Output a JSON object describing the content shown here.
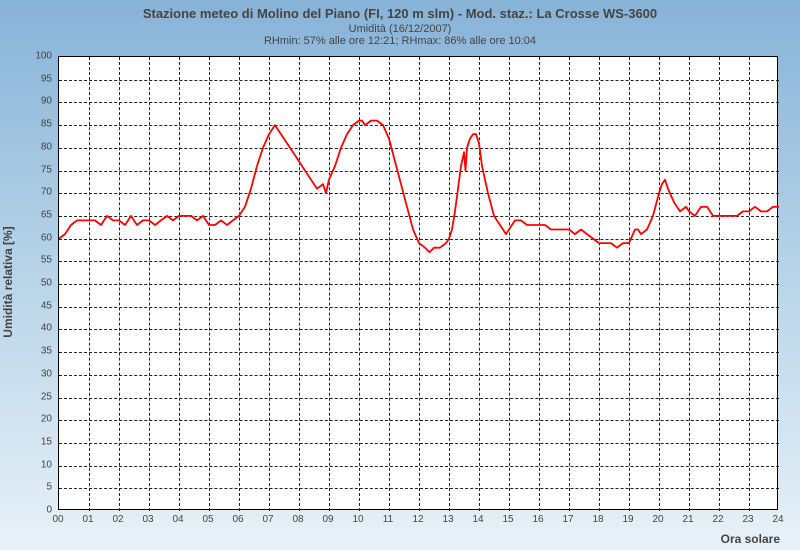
{
  "header": {
    "title": "Stazione meteo di Molino del Piano (FI, 120 m slm) - Mod. staz.: La Crosse WS-3600",
    "subtitle": "Umidità (16/12/2007)",
    "subtitle2": "RHmin: 57% alle ore 12:21; RHmax: 86% alle ore 10:04"
  },
  "axes": {
    "ylabel": "Umidità relativa [%]",
    "xlabel": "Ora solare",
    "ymin": 0,
    "ymax": 100,
    "ytick_step": 5,
    "xmin": 0,
    "xmax": 24,
    "xtick_step": 1,
    "xtick_labels": [
      "00",
      "01",
      "02",
      "03",
      "04",
      "05",
      "06",
      "07",
      "08",
      "09",
      "10",
      "11",
      "12",
      "13",
      "14",
      "15",
      "16",
      "17",
      "18",
      "19",
      "20",
      "21",
      "22",
      "23",
      "24"
    ]
  },
  "style": {
    "line_color": "#ff0000",
    "line_width": 1.8,
    "grid_color": "#222222",
    "plot_bg": "#ffffff",
    "page_bg_top": "#87b3d8",
    "page_bg_bottom": "#e8f1f8",
    "tick_font_size": 10,
    "label_font_size": 12,
    "title_font_size": 13
  },
  "series": {
    "name": "humidity",
    "points": [
      [
        0.0,
        60
      ],
      [
        0.2,
        61
      ],
      [
        0.4,
        63
      ],
      [
        0.6,
        64
      ],
      [
        0.8,
        64
      ],
      [
        1.0,
        64
      ],
      [
        1.2,
        64
      ],
      [
        1.4,
        63
      ],
      [
        1.6,
        65
      ],
      [
        1.8,
        64
      ],
      [
        2.0,
        64
      ],
      [
        2.2,
        63
      ],
      [
        2.4,
        65
      ],
      [
        2.6,
        63
      ],
      [
        2.8,
        64
      ],
      [
        3.0,
        64
      ],
      [
        3.2,
        63
      ],
      [
        3.4,
        64
      ],
      [
        3.6,
        65
      ],
      [
        3.8,
        64
      ],
      [
        4.0,
        65
      ],
      [
        4.2,
        65
      ],
      [
        4.4,
        65
      ],
      [
        4.6,
        64
      ],
      [
        4.8,
        65
      ],
      [
        5.0,
        63
      ],
      [
        5.2,
        63
      ],
      [
        5.4,
        64
      ],
      [
        5.6,
        63
      ],
      [
        5.8,
        64
      ],
      [
        6.0,
        65
      ],
      [
        6.2,
        67
      ],
      [
        6.4,
        71
      ],
      [
        6.6,
        76
      ],
      [
        6.8,
        80
      ],
      [
        7.0,
        83
      ],
      [
        7.1,
        84
      ],
      [
        7.2,
        85
      ],
      [
        7.3,
        84
      ],
      [
        7.4,
        83
      ],
      [
        7.6,
        81
      ],
      [
        7.8,
        79
      ],
      [
        8.0,
        77
      ],
      [
        8.2,
        75
      ],
      [
        8.4,
        73
      ],
      [
        8.6,
        71
      ],
      [
        8.8,
        72
      ],
      [
        8.9,
        70
      ],
      [
        9.0,
        73
      ],
      [
        9.2,
        76
      ],
      [
        9.4,
        80
      ],
      [
        9.6,
        83
      ],
      [
        9.8,
        85
      ],
      [
        10.0,
        86
      ],
      [
        10.1,
        86
      ],
      [
        10.2,
        85
      ],
      [
        10.4,
        86
      ],
      [
        10.6,
        86
      ],
      [
        10.8,
        85
      ],
      [
        11.0,
        82
      ],
      [
        11.2,
        77
      ],
      [
        11.4,
        72
      ],
      [
        11.6,
        67
      ],
      [
        11.8,
        62
      ],
      [
        12.0,
        59
      ],
      [
        12.2,
        58
      ],
      [
        12.35,
        57
      ],
      [
        12.5,
        58
      ],
      [
        12.7,
        58
      ],
      [
        12.9,
        59
      ],
      [
        13.0,
        60
      ],
      [
        13.1,
        62
      ],
      [
        13.2,
        66
      ],
      [
        13.3,
        71
      ],
      [
        13.4,
        76
      ],
      [
        13.5,
        79
      ],
      [
        13.55,
        75
      ],
      [
        13.6,
        80
      ],
      [
        13.7,
        82
      ],
      [
        13.8,
        83
      ],
      [
        13.9,
        83
      ],
      [
        14.0,
        81
      ],
      [
        14.1,
        76
      ],
      [
        14.3,
        70
      ],
      [
        14.5,
        65
      ],
      [
        14.7,
        63
      ],
      [
        14.9,
        61
      ],
      [
        15.0,
        62
      ],
      [
        15.2,
        64
      ],
      [
        15.4,
        64
      ],
      [
        15.6,
        63
      ],
      [
        15.8,
        63
      ],
      [
        16.0,
        63
      ],
      [
        16.2,
        63
      ],
      [
        16.4,
        62
      ],
      [
        16.6,
        62
      ],
      [
        16.8,
        62
      ],
      [
        17.0,
        62
      ],
      [
        17.2,
        61
      ],
      [
        17.4,
        62
      ],
      [
        17.6,
        61
      ],
      [
        17.8,
        60
      ],
      [
        18.0,
        59
      ],
      [
        18.2,
        59
      ],
      [
        18.4,
        59
      ],
      [
        18.6,
        58
      ],
      [
        18.8,
        59
      ],
      [
        19.0,
        59
      ],
      [
        19.2,
        62
      ],
      [
        19.3,
        62
      ],
      [
        19.4,
        61
      ],
      [
        19.6,
        62
      ],
      [
        19.8,
        65
      ],
      [
        20.0,
        70
      ],
      [
        20.1,
        72
      ],
      [
        20.2,
        73
      ],
      [
        20.3,
        71
      ],
      [
        20.5,
        68
      ],
      [
        20.7,
        66
      ],
      [
        20.9,
        67
      ],
      [
        21.0,
        66
      ],
      [
        21.2,
        65
      ],
      [
        21.4,
        67
      ],
      [
        21.6,
        67
      ],
      [
        21.8,
        65
      ],
      [
        22.0,
        65
      ],
      [
        22.2,
        65
      ],
      [
        22.4,
        65
      ],
      [
        22.6,
        65
      ],
      [
        22.8,
        66
      ],
      [
        23.0,
        66
      ],
      [
        23.2,
        67
      ],
      [
        23.4,
        66
      ],
      [
        23.6,
        66
      ],
      [
        23.8,
        67
      ],
      [
        24.0,
        67
      ]
    ]
  }
}
